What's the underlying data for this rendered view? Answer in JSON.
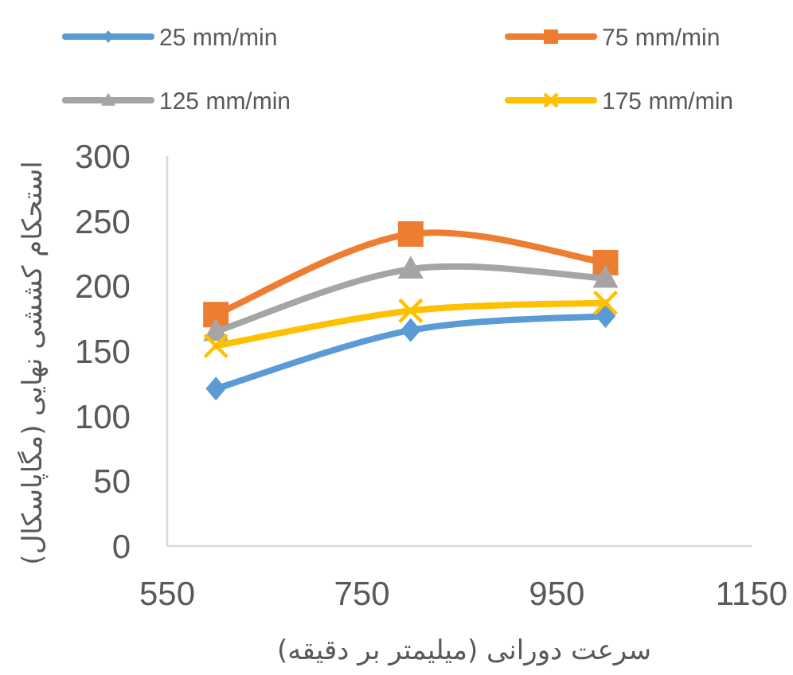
{
  "chart_data": {
    "type": "line",
    "xlabel": "سرعت دورانی (میلیمتر بر دقیقه)",
    "ylabel": "استحکام کششی نهایی (مگاپاسکال)",
    "x": [
      600,
      800,
      1000
    ],
    "series": [
      {
        "name": "25 mm/min",
        "color": "#5b9bd5",
        "marker": "diamond",
        "values": [
          121,
          166,
          177
        ]
      },
      {
        "name": "75 mm/min",
        "color": "#ed7d31",
        "marker": "square",
        "values": [
          178,
          240,
          218
        ]
      },
      {
        "name": "125 mm/min",
        "color": "#a5a5a5",
        "marker": "triangle",
        "values": [
          165,
          213,
          206
        ]
      },
      {
        "name": "175 mm/min",
        "color": "#ffc000",
        "marker": "cross",
        "values": [
          154,
          181,
          187
        ]
      }
    ],
    "xlim": [
      550,
      1150
    ],
    "xticks": [
      550,
      750,
      950,
      1150
    ],
    "ylim": [
      0,
      300
    ],
    "yticks": [
      0,
      50,
      100,
      150,
      200,
      250,
      300
    ],
    "legend": "top"
  }
}
